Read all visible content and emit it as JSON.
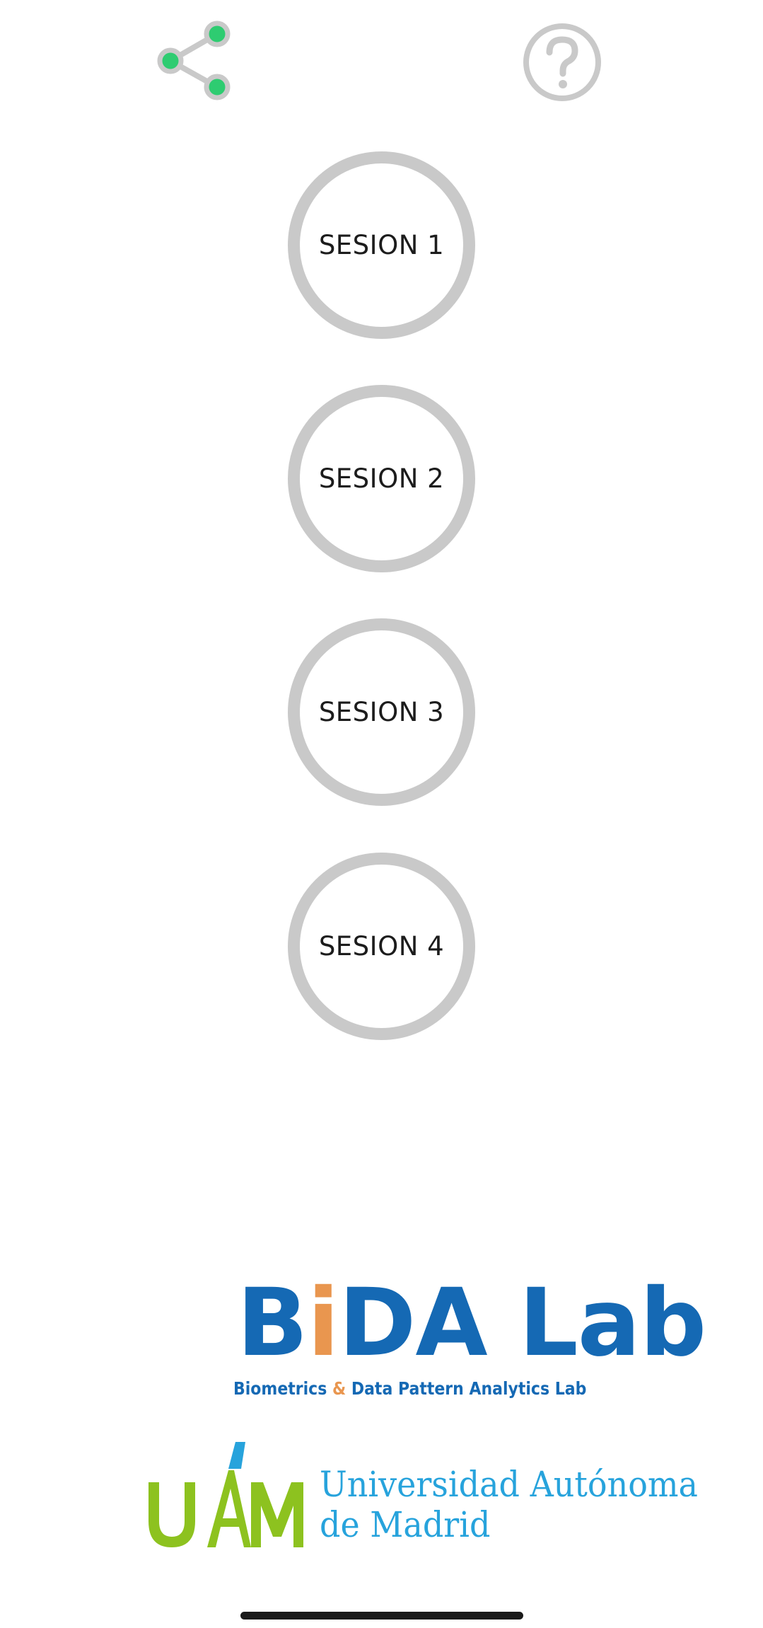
{
  "toolbar": {
    "share_icon": "share-icon",
    "help_icon": "question-mark-icon"
  },
  "sessions": [
    {
      "label": "SESION 1"
    },
    {
      "label": "SESION 2"
    },
    {
      "label": "SESION 3"
    },
    {
      "label": "SESION 4"
    }
  ],
  "logos": {
    "bida": {
      "title_part1": "B",
      "title_accent": "i",
      "title_part2": "DA Lab",
      "subtitle_part1": "Biometrics ",
      "subtitle_amp": "&",
      "subtitle_part2": " Data Pattern Analytics Lab"
    },
    "uam": {
      "mark": "UAM",
      "name_line1": "Universidad Autónoma",
      "name_line2": "de Madrid"
    }
  },
  "colors": {
    "ring": "#c9c9c9",
    "share_dot": "#2ecc71",
    "bida_blue": "#1569b4",
    "bida_orange": "#e9964f",
    "uam_green": "#8dc21f",
    "uam_blue": "#27a3dc"
  }
}
